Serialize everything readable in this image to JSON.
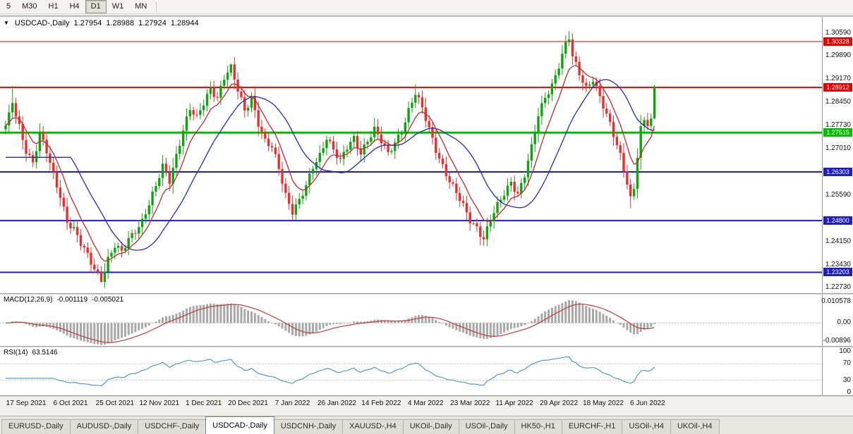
{
  "toolbar": {
    "timeframes": [
      {
        "label": "5",
        "active": false
      },
      {
        "label": "M30",
        "active": false
      },
      {
        "label": "H1",
        "active": false
      },
      {
        "label": "H4",
        "active": false
      },
      {
        "label": "D1",
        "active": true
      },
      {
        "label": "W1",
        "active": false
      },
      {
        "label": "MN",
        "active": false
      }
    ]
  },
  "chart": {
    "icon": "▼",
    "symbol": "USDCAD-,Daily",
    "open": "1.27954",
    "high": "1.28988",
    "low": "1.27924",
    "close": "1.28944"
  },
  "indicators": {
    "macd": {
      "label": "MACD(12,26,9)",
      "value_main": "-0.001119",
      "value_signal": "-0.005021",
      "axis": [
        "0.010578",
        "0.00",
        "-0.00896"
      ],
      "axis_values": [
        0.010578,
        0,
        -0.00896
      ]
    },
    "rsi": {
      "label": "RSI(14)",
      "value": "63.5146",
      "axis": [
        "100",
        "70",
        "30",
        "0"
      ],
      "axis_values": [
        100,
        70,
        30,
        0
      ]
    }
  },
  "price_axis": {
    "ticks": [
      "1.30590",
      "1.29890",
      "1.29170",
      "1.28450",
      "1.27730",
      "1.27010",
      "1.25590",
      "1.24150",
      "1.23430",
      "1.22730"
    ]
  },
  "levels": [
    {
      "price": 1.30328,
      "label": "1.30328",
      "color": "#e60000",
      "width": 1
    },
    {
      "price": 1.28912,
      "label": "1.28912",
      "color": "#e60000",
      "width": 2
    },
    {
      "price": 1.27515,
      "label": "1.27515",
      "color": "#00c000",
      "width": 3
    },
    {
      "price": 1.26303,
      "label": "1.26303",
      "color": "#1c1cc8",
      "width": 2
    },
    {
      "price": 1.248,
      "label": "1.24800",
      "color": "#1c1cc8",
      "width": 2
    },
    {
      "price": 1.23203,
      "label": "1.23203",
      "color": "#1c1cc8",
      "width": 2
    }
  ],
  "dates": [
    "17 Sep 2021",
    "6 Oct 2021",
    "25 Oct 2021",
    "12 Nov 2021",
    "1 Dec 2021",
    "20 Dec 2021",
    "7 Jan 2022",
    "26 Jan 2022",
    "14 Feb 2022",
    "4 Mar 2022",
    "23 Mar 2022",
    "11 Apr 2022",
    "29 Apr 2022",
    "18 May 2022",
    "6 Jun 2022"
  ],
  "tabs": [
    {
      "label": "EURUSD-,Daily",
      "active": false
    },
    {
      "label": "AUDUSD-,Daily",
      "active": false
    },
    {
      "label": "USDCHF-,Daily",
      "active": false
    },
    {
      "label": "USDCAD-,Daily",
      "active": true
    },
    {
      "label": "USDCNH-,Daily",
      "active": false
    },
    {
      "label": "XAUUSD-,H4",
      "active": false
    },
    {
      "label": "UKOil-,Daily",
      "active": false
    },
    {
      "label": "USOil-,Daily",
      "active": false
    },
    {
      "label": "HK50-,H1",
      "active": false
    },
    {
      "label": "EURCHF-,H1",
      "active": false
    },
    {
      "label": "USOil-,H4",
      "active": false
    },
    {
      "label": "UKOil-,H4",
      "active": false
    }
  ],
  "chart_data": {
    "type": "candlestick",
    "symbol": "USDCAD",
    "timeframe": "Daily",
    "ohlc_current": {
      "open": 1.27954,
      "high": 1.28988,
      "low": 1.27924,
      "close": 1.28944
    },
    "ylim": [
      1.2256,
      1.3109
    ],
    "candle_count": 191,
    "seed": 11,
    "colors": {
      "up": "#12a212",
      "down": "#e53030"
    },
    "anchors": [
      [
        0,
        1.2768
      ],
      [
        1,
        1.28
      ],
      [
        2,
        1.2845
      ],
      [
        3,
        1.2805
      ],
      [
        4,
        1.2772
      ],
      [
        6,
        1.27
      ],
      [
        8,
        1.266
      ],
      [
        10,
        1.2745
      ],
      [
        12,
        1.269
      ],
      [
        14,
        1.262
      ],
      [
        16,
        1.256
      ],
      [
        18,
        1.248
      ],
      [
        20,
        1.2452
      ],
      [
        22,
        1.2405
      ],
      [
        24,
        1.237
      ],
      [
        26,
        1.2332
      ],
      [
        28,
        1.2302
      ],
      [
        30,
        1.2362
      ],
      [
        32,
        1.24
      ],
      [
        34,
        1.2378
      ],
      [
        36,
        1.2422
      ],
      [
        38,
        1.2452
      ],
      [
        40,
        1.2482
      ],
      [
        42,
        1.2532
      ],
      [
        44,
        1.2582
      ],
      [
        46,
        1.2645
      ],
      [
        48,
        1.2605
      ],
      [
        50,
        1.2685
      ],
      [
        52,
        1.2762
      ],
      [
        54,
        1.2822
      ],
      [
        56,
        1.2792
      ],
      [
        58,
        1.2842
      ],
      [
        60,
        1.2892
      ],
      [
        62,
        1.2862
      ],
      [
        64,
        1.2922
      ],
      [
        66,
        1.2948
      ],
      [
        68,
        1.288
      ],
      [
        70,
        1.2822
      ],
      [
        72,
        1.2862
      ],
      [
        74,
        1.2782
      ],
      [
        76,
        1.2722
      ],
      [
        78,
        1.2702
      ],
      [
        80,
        1.2642
      ],
      [
        82,
        1.2562
      ],
      [
        84,
        1.2512
      ],
      [
        86,
        1.2542
      ],
      [
        88,
        1.2582
      ],
      [
        90,
        1.2642
      ],
      [
        92,
        1.2682
      ],
      [
        94,
        1.2742
      ],
      [
        96,
        1.2702
      ],
      [
        98,
        1.2662
      ],
      [
        100,
        1.2702
      ],
      [
        102,
        1.2732
      ],
      [
        104,
        1.2692
      ],
      [
        106,
        1.2732
      ],
      [
        108,
        1.2762
      ],
      [
        110,
        1.2722
      ],
      [
        112,
        1.2682
      ],
      [
        114,
        1.2722
      ],
      [
        116,
        1.2762
      ],
      [
        118,
        1.2822
      ],
      [
        120,
        1.2872
      ],
      [
        122,
        1.2822
      ],
      [
        124,
        1.2762
      ],
      [
        126,
        1.2702
      ],
      [
        128,
        1.2652
      ],
      [
        130,
        1.2602
      ],
      [
        132,
        1.2562
      ],
      [
        134,
        1.2522
      ],
      [
        136,
        1.2482
      ],
      [
        138,
        1.2462
      ],
      [
        140,
        1.2425
      ],
      [
        142,
        1.2482
      ],
      [
        144,
        1.2522
      ],
      [
        146,
        1.2562
      ],
      [
        148,
        1.2602
      ],
      [
        150,
        1.2565
      ],
      [
        152,
        1.2622
      ],
      [
        154,
        1.2702
      ],
      [
        156,
        1.2802
      ],
      [
        158,
        1.2862
      ],
      [
        160,
        1.2902
      ],
      [
        162,
        1.2962
      ],
      [
        164,
        1.3022
      ],
      [
        165,
        1.3042
      ],
      [
        166,
        1.2982
      ],
      [
        168,
        1.2932
      ],
      [
        170,
        1.2892
      ],
      [
        172,
        1.2922
      ],
      [
        174,
        1.2862
      ],
      [
        176,
        1.2802
      ],
      [
        178,
        1.2742
      ],
      [
        180,
        1.2682
      ],
      [
        182,
        1.2602
      ],
      [
        183,
        1.2552
      ],
      [
        184,
        1.2582
      ],
      [
        185,
        1.2682
      ],
      [
        186,
        1.2762
      ],
      [
        187,
        1.2782
      ],
      [
        188,
        1.2772
      ],
      [
        189,
        1.27954
      ],
      [
        190,
        1.28944
      ]
    ],
    "forced_extremes": [
      {
        "i": 2,
        "high": 1.2896
      },
      {
        "i": 28,
        "low": 1.2288
      },
      {
        "i": 66,
        "high": 1.2964
      },
      {
        "i": 120,
        "high": 1.2901
      },
      {
        "i": 140,
        "low": 1.2402
      },
      {
        "i": 164,
        "high": 1.3052
      },
      {
        "i": 165,
        "high": 1.3065
      },
      {
        "i": 183,
        "low": 1.2518
      }
    ],
    "last_candle": {
      "open": 1.27954,
      "high": 1.28988,
      "low": 1.27924,
      "close": 1.28944
    },
    "overlays": [
      {
        "name": "ma-fast",
        "type": "ema",
        "period": 8,
        "color": "#c22a2a"
      },
      {
        "name": "ma-slow",
        "type": "sma",
        "period": 20,
        "color": "#2a2aae"
      }
    ],
    "macd": {
      "fast": 12,
      "slow": 26,
      "signal": 9,
      "ylim": [
        -0.0112,
        0.0139
      ],
      "main_current": -0.001119,
      "signal_current": -0.005021,
      "histogram_color": "#a8a8a8",
      "signal_color": "#c23a3a"
    },
    "rsi": {
      "period": 14,
      "ylim": [
        0,
        100
      ],
      "levels": [
        70,
        30
      ],
      "current": 63.5146,
      "color": "#4a8fc4"
    },
    "x_axis": {
      "tick_start": 6,
      "tick_step": 13
    }
  }
}
